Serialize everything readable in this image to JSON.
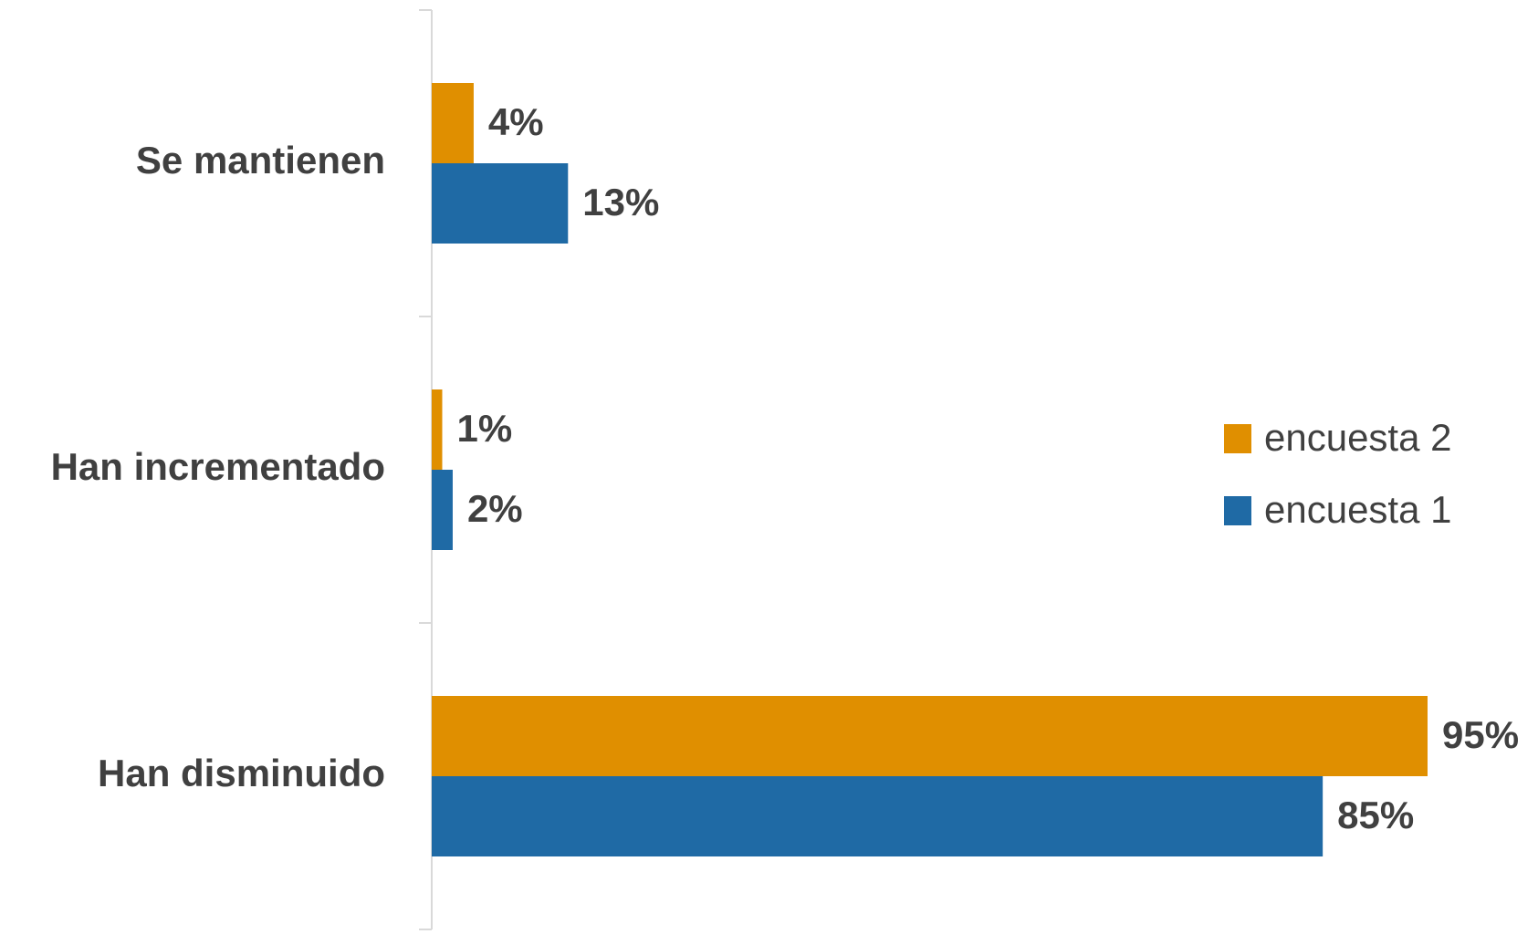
{
  "chart_data": {
    "type": "bar",
    "orientation": "horizontal",
    "categories": [
      "Se mantienen",
      "Han incrementado",
      "Han disminuido"
    ],
    "series": [
      {
        "name": "encuesta 2",
        "color": "#e08f00",
        "values": [
          4,
          1,
          95
        ],
        "value_labels": [
          "4%",
          "1%",
          "95%"
        ]
      },
      {
        "name": "encuesta 1",
        "color": "#1f6aa5",
        "values": [
          13,
          2,
          85
        ],
        "value_labels": [
          "13%",
          "2%",
          "85%"
        ]
      }
    ],
    "legend": "right"
  }
}
